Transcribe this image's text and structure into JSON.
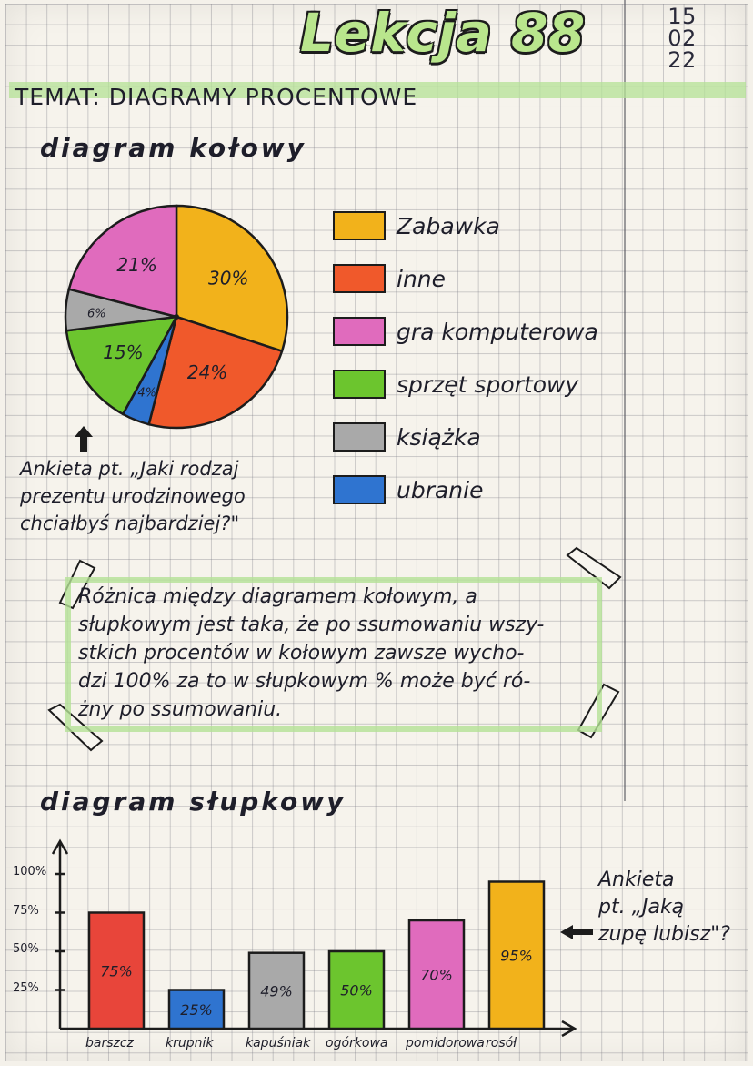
{
  "header": {
    "title": "Lekcja 88",
    "date_lines": [
      "15",
      "02",
      "22"
    ],
    "topic": "TEMAT: DIAGRAMY PROCENTOWE"
  },
  "pie_section": {
    "heading": "diagram kołowy",
    "survey_lines": [
      "Ankieta pt. „Jaki rodzaj",
      "prezentu urodzinowego",
      "chciałbyś najbardziej?\""
    ]
  },
  "note": {
    "lines": [
      "Różnica między diagramem kołowym, a",
      "słupkowym jest taka, że po ssumowaniu wszy-",
      "stkich procentów w kołowym zawsze wycho-",
      "dzi 100% za to w słupkowym % może być ró-",
      "żny po ssumowaniu."
    ]
  },
  "bar_section": {
    "heading": "diagram słupkowy",
    "survey_lines": [
      "Ankieta",
      "pt. „Jaką",
      "zupę lubisz\"?"
    ]
  },
  "chart_data": [
    {
      "type": "pie",
      "title": "",
      "categories": [
        "Zabawka",
        "inne",
        "ubranie",
        "sprzęt sportowy",
        "książka",
        "gra komputerowa"
      ],
      "values": [
        30,
        24,
        4,
        15,
        6,
        21
      ],
      "slice_labels": [
        "30%",
        "24%",
        "4%",
        "15%",
        "6%",
        "21%"
      ],
      "colors": [
        "#f2b21b",
        "#f0592b",
        "#2f74d0",
        "#6cc52e",
        "#a9a9a9",
        "#e06bbd"
      ],
      "legend": [
        {
          "label": "Zabawka",
          "color": "#f2b21b"
        },
        {
          "label": "inne",
          "color": "#f0592b"
        },
        {
          "label": "gra komputerowa",
          "color": "#e06bbd"
        },
        {
          "label": "sprzęt sportowy",
          "color": "#6cc52e"
        },
        {
          "label": "książka",
          "color": "#a9a9a9"
        },
        {
          "label": "ubranie",
          "color": "#2f74d0"
        }
      ],
      "legend_placement": "right"
    },
    {
      "type": "bar",
      "title": "",
      "categories": [
        "barszcz",
        "krupnik",
        "kapuśniak",
        "ogórkowa",
        "pomidorowa",
        "rosół"
      ],
      "values": [
        75,
        25,
        49,
        50,
        70,
        95
      ],
      "bar_labels": [
        "75%",
        "25%",
        "49%",
        "50%",
        "70%",
        "95%"
      ],
      "colors": [
        "#e8453a",
        "#2f74d0",
        "#a9a9a9",
        "#6cc52e",
        "#e06bbd",
        "#f2b21b"
      ],
      "yticks": [
        25,
        50,
        75,
        100
      ],
      "ytick_labels": [
        "25%",
        "50%",
        "75%",
        "100%"
      ],
      "ylim": [
        0,
        100
      ],
      "grid": false
    }
  ]
}
